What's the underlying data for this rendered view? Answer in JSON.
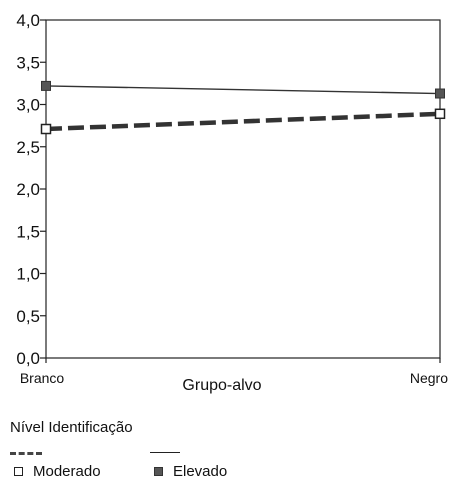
{
  "chart_data": {
    "type": "line",
    "categories": [
      "Branco",
      "Negro"
    ],
    "xlabel": "Grupo-alvo",
    "ylabel": "",
    "ylim": [
      0,
      4
    ],
    "y_ticks": [
      "0,0",
      "0,5",
      "1,0",
      "1,5",
      "2,0",
      "2,5",
      "3,0",
      "3,5",
      "4,0"
    ],
    "grid": false,
    "legend": {
      "title": "Nível Identificação",
      "position": "bottom-left"
    },
    "series": [
      {
        "name": "Moderado",
        "values": [
          2.71,
          2.89
        ],
        "line_style": "dashed",
        "marker": "open-square",
        "color": "#333333"
      },
      {
        "name": "Elevado",
        "values": [
          3.22,
          3.13
        ],
        "line_style": "solid",
        "marker": "filled-square",
        "color": "#333333"
      }
    ]
  }
}
